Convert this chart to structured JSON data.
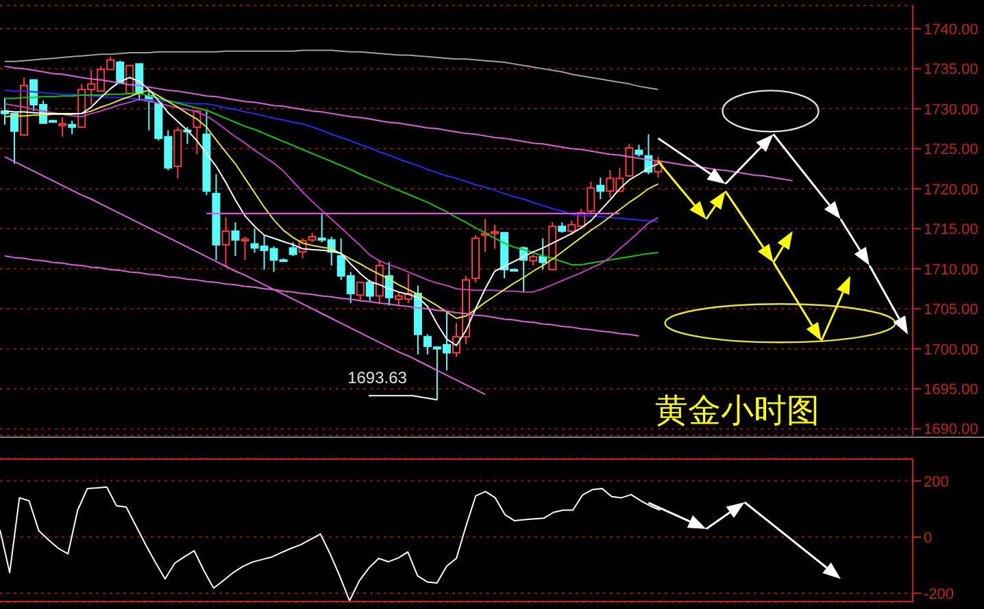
{
  "chart_data": [
    {
      "type": "candlestick",
      "title": "黄金小时图",
      "categories": [
        null,
        null,
        null,
        null,
        null,
        null,
        null,
        null,
        null,
        null,
        null,
        null,
        null,
        null,
        null,
        null,
        null,
        null,
        null,
        null,
        null,
        null,
        null,
        null,
        null,
        null,
        null,
        null,
        null,
        null,
        null,
        null,
        null,
        null,
        null,
        null,
        null,
        null,
        null,
        null,
        null,
        null,
        null,
        null,
        null,
        null,
        null,
        null,
        null,
        null,
        null,
        null,
        null,
        null,
        null,
        null,
        null,
        null,
        null,
        null,
        null,
        null,
        null,
        null,
        null,
        null,
        null,
        null,
        null,
        null,
        null,
        null,
        null,
        null,
        null,
        null,
        null,
        null,
        null,
        null,
        null,
        null,
        null,
        null,
        null,
        null,
        null,
        null,
        null,
        null,
        null,
        null,
        null,
        null,
        null
      ],
      "ohlc": [
        [
          1729.7,
          1731.4,
          1728.0,
          1729.4
        ],
        [
          1729.4,
          1729.4,
          1723.1,
          1727.2
        ],
        [
          1726.7,
          1733.9,
          1726.7,
          1732.9
        ],
        [
          1733.6,
          1733.6,
          1729.7,
          1730.5
        ],
        [
          1730.5,
          1731.0,
          1728.2,
          1728.2
        ],
        [
          1728.5,
          1728.6,
          1728.4,
          1728.5
        ],
        [
          1727.9,
          1728.9,
          1726.5,
          1728.1
        ],
        [
          1728.0,
          1728.5,
          1726.8,
          1727.7
        ],
        [
          1727.7,
          1733.1,
          1727.7,
          1732.4
        ],
        [
          1732.4,
          1734.8,
          1730.5,
          1733.1
        ],
        [
          1732.2,
          1735.3,
          1732.2,
          1734.9
        ],
        [
          1734.9,
          1736.5,
          1734.9,
          1736.1
        ],
        [
          1735.8,
          1736.0,
          1733.2,
          1733.2
        ],
        [
          1731.9,
          1735.4,
          1731.9,
          1735.4
        ],
        [
          1735.6,
          1735.6,
          1731.0,
          1731.9
        ],
        [
          1731.6,
          1732.2,
          1727.3,
          1731.0
        ],
        [
          1730.7,
          1730.7,
          1726.0,
          1726.3
        ],
        [
          1726.5,
          1727.3,
          1722.3,
          1722.6
        ],
        [
          1722.8,
          1727.7,
          1721.3,
          1727.3
        ],
        [
          1727.3,
          1727.7,
          1725.6,
          1727.2
        ],
        [
          1727.7,
          1729.9,
          1724.3,
          1729.7
        ],
        [
          1726.8,
          1729.7,
          1719.2,
          1719.7
        ],
        [
          1719.4,
          1721.8,
          1711.1,
          1713.0
        ],
        [
          1713.0,
          1716.4,
          1710.3,
          1714.7
        ],
        [
          1714.7,
          1715.8,
          1711.6,
          1713.6
        ],
        [
          1713.5,
          1714.0,
          1711.1,
          1713.7
        ],
        [
          1713.1,
          1715.0,
          1712.0,
          1712.6
        ],
        [
          1712.8,
          1714.2,
          1709.9,
          1712.3
        ],
        [
          1712.5,
          1712.8,
          1709.6,
          1711.1
        ],
        [
          1711.1,
          1711.3,
          1710.9,
          1711.1
        ],
        [
          1712.6,
          1713.3,
          1711.6,
          1711.8
        ],
        [
          1712.1,
          1713.8,
          1711.3,
          1713.5
        ],
        [
          1713.6,
          1714.5,
          1713.3,
          1714.0
        ],
        [
          1713.8,
          1716.9,
          1713.3,
          1713.6
        ],
        [
          1713.6,
          1714.0,
          1710.4,
          1712.1
        ],
        [
          1711.6,
          1713.8,
          1708.6,
          1709.1
        ],
        [
          1709.1,
          1709.6,
          1705.7,
          1706.9
        ],
        [
          1706.7,
          1708.3,
          1706.0,
          1708.3
        ],
        [
          1708.3,
          1708.6,
          1706.0,
          1706.6
        ],
        [
          1706.6,
          1711.1,
          1705.7,
          1710.4
        ],
        [
          1709.1,
          1710.8,
          1705.4,
          1706.4
        ],
        [
          1706.2,
          1707.1,
          1705.4,
          1706.6
        ],
        [
          1706.2,
          1709.4,
          1705.7,
          1706.9
        ],
        [
          1706.9,
          1707.9,
          1699.3,
          1701.8
        ],
        [
          1701.5,
          1701.8,
          1699.3,
          1700.3
        ],
        [
          1700.2,
          1700.3,
          1693.63,
          1700.0
        ],
        [
          1700.5,
          1704.5,
          1697.3,
          1699.5
        ],
        [
          1699.5,
          1703.2,
          1699.0,
          1701.5
        ],
        [
          1701.5,
          1709.1,
          1700.6,
          1708.6
        ],
        [
          1708.8,
          1714.2,
          1708.3,
          1713.8
        ],
        [
          1714.2,
          1716.2,
          1712.1,
          1714.4
        ],
        [
          1714.4,
          1715.5,
          1712.5,
          1714.6
        ],
        [
          1714.5,
          1714.5,
          1708.8,
          1709.9
        ],
        [
          1709.9,
          1710.0,
          1709.8,
          1709.9
        ],
        [
          1712.6,
          1712.8,
          1707.1,
          1711.1
        ],
        [
          1711.0,
          1711.8,
          1710.4,
          1711.5
        ],
        [
          1711.5,
          1713.8,
          1709.9,
          1710.8
        ],
        [
          1709.9,
          1715.8,
          1709.9,
          1715.3
        ],
        [
          1715.3,
          1715.8,
          1714.5,
          1714.7
        ],
        [
          1714.7,
          1716.0,
          1714.2,
          1715.5
        ],
        [
          1715.3,
          1717.5,
          1715.3,
          1717.0
        ],
        [
          1717.2,
          1720.9,
          1717.0,
          1720.1
        ],
        [
          1720.4,
          1721.4,
          1718.7,
          1719.7
        ],
        [
          1719.7,
          1722.3,
          1718.9,
          1721.3
        ],
        [
          1719.7,
          1722.6,
          1719.6,
          1721.3
        ],
        [
          1721.6,
          1725.6,
          1721.6,
          1725.1
        ],
        [
          1724.8,
          1725.5,
          1724.0,
          1724.3
        ],
        [
          1724.1,
          1726.8,
          1721.8,
          1722.1
        ],
        [
          1722.1,
          1724.0,
          1721.4,
          1723.3
        ],
        null,
        null,
        null,
        null,
        null,
        null,
        null,
        null,
        null,
        null,
        null,
        null,
        null,
        null,
        null,
        null,
        null,
        null,
        null,
        null,
        null,
        null,
        null,
        null,
        null,
        null
      ],
      "colors": [
        "#54fcfc",
        "#54fcfc",
        "#ff3c3c",
        "#54fcfc",
        "#54fcfc",
        "#54fcfc",
        "#ff3c3c",
        "#54fcfc",
        "#ff3c3c",
        "#ff3c3c",
        "#ff3c3c",
        "#ff3c3c",
        "#54fcfc",
        "#ff3c3c",
        "#54fcfc",
        "#54fcfc",
        "#54fcfc",
        "#54fcfc",
        "#ff3c3c",
        "#54fcfc",
        "#ff3c3c",
        "#54fcfc",
        "#54fcfc",
        "#ff3c3c",
        "#54fcfc",
        "#ff3c3c",
        "#54fcfc",
        "#54fcfc",
        "#54fcfc",
        "#54fcfc",
        "#54fcfc",
        "#ff3c3c",
        "#ff3c3c",
        "#54fcfc",
        "#54fcfc",
        "#54fcfc",
        "#54fcfc",
        "#ff3c3c",
        "#54fcfc",
        "#ff3c3c",
        "#54fcfc",
        "#ff3c3c",
        "#ff3c3c",
        "#54fcfc",
        "#54fcfc",
        "#54fcfc",
        "#54fcfc",
        "#ff3c3c",
        "#ff3c3c",
        "#ff3c3c",
        "#ff3c3c",
        "#ff3c3c",
        "#54fcfc",
        "#54fcfc",
        "#54fcfc",
        "#ff3c3c",
        "#54fcfc",
        "#ff3c3c",
        "#54fcfc",
        "#ff3c3c",
        "#ff3c3c",
        "#ff3c3c",
        "#54fcfc",
        "#ff3c3c",
        "#ff3c3c",
        "#ff3c3c",
        "#54fcfc",
        "#54fcfc",
        "#ff3c3c",
        null,
        null,
        null,
        null,
        null,
        null,
        null,
        null,
        null,
        null,
        null,
        null,
        null,
        null,
        null,
        null,
        null,
        null,
        null,
        null,
        null,
        null,
        null,
        null,
        null,
        null
      ],
      "series": [
        {
          "type": "line",
          "color": "#a0a0a0",
          "values": [
            1735.9,
            1735.9,
            1736.0,
            1736.1,
            1736.2,
            1736.3,
            1736.4,
            1736.5,
            1736.6,
            1736.7,
            1736.8,
            1736.8,
            1736.9,
            1737.0,
            1737.0,
            1737.0,
            1737.1,
            1737.1,
            1737.1,
            1737.1,
            1737.1,
            1737.1,
            1737.1,
            1737.2,
            1737.2,
            1737.2,
            1737.2,
            1737.2,
            1737.2,
            1737.2,
            1737.2,
            1737.3,
            1737.3,
            1737.3,
            1737.3,
            1737.2,
            1737.1,
            1737.1,
            1737.0,
            1736.9,
            1736.8,
            1736.7,
            1736.7,
            1736.6,
            1736.5,
            1736.4,
            1736.3,
            1736.2,
            1736.2,
            1736.1,
            1736.0,
            1735.9,
            1735.8,
            1735.6,
            1735.4,
            1735.2,
            1735.0,
            1734.8,
            1734.6,
            1734.3,
            1734.1,
            1733.9,
            1733.7,
            1733.5,
            1733.3,
            1733.1,
            1732.8,
            1732.6,
            1732.4,
            null,
            null,
            null,
            null,
            null,
            null,
            null,
            null,
            null,
            null,
            null,
            null,
            null,
            null,
            null,
            null,
            null,
            null,
            null,
            null,
            null,
            null,
            null,
            null,
            null,
            null
          ]
        },
        {
          "type": "line",
          "color": "#2828ff",
          "values": [
            1732.3,
            1732.2,
            1732.2,
            1732.1,
            1732.0,
            1731.9,
            1731.8,
            1731.8,
            1731.7,
            1731.6,
            1731.5,
            1731.4,
            1731.4,
            1731.3,
            1731.2,
            1731.1,
            1731.0,
            1730.9,
            1730.8,
            1730.7,
            1730.6,
            1730.6,
            1730.4,
            1730.1,
            1729.9,
            1729.6,
            1729.4,
            1729.1,
            1728.8,
            1728.6,
            1728.3,
            1728.1,
            1727.7,
            1727.3,
            1726.8,
            1726.4,
            1726.0,
            1725.5,
            1725.1,
            1724.6,
            1724.2,
            1723.7,
            1723.3,
            1722.9,
            1722.4,
            1722.0,
            1721.6,
            1721.3,
            1720.9,
            1720.5,
            1720.2,
            1719.8,
            1719.4,
            1719.0,
            1718.7,
            1718.3,
            1717.9,
            1717.5,
            1717.2,
            1716.8,
            1716.6,
            1716.6,
            1716.5,
            1716.4,
            1716.3,
            1716.2,
            1716.1,
            1716.0,
            1715.9,
            null,
            null,
            null,
            null,
            null,
            null,
            null,
            null,
            null,
            null,
            null,
            null,
            null,
            null,
            null,
            null,
            null,
            null,
            null,
            null,
            null,
            null,
            null,
            null,
            null,
            null
          ]
        },
        {
          "type": "line",
          "color": "#10c810",
          "values": [
            1731.3,
            1731.3,
            1731.4,
            1731.4,
            1731.5,
            1731.5,
            1731.6,
            1731.6,
            1731.7,
            1731.7,
            1731.7,
            1731.8,
            1731.8,
            1731.9,
            1731.9,
            1731.6,
            1731.3,
            1731.0,
            1730.7,
            1730.4,
            1730.1,
            1729.8,
            1729.3,
            1728.8,
            1728.3,
            1727.8,
            1727.4,
            1726.9,
            1726.4,
            1725.9,
            1725.4,
            1724.9,
            1724.4,
            1723.9,
            1723.4,
            1722.9,
            1722.4,
            1721.8,
            1721.3,
            1720.8,
            1720.3,
            1719.8,
            1719.3,
            1718.8,
            1718.3,
            1717.7,
            1717.1,
            1716.4,
            1715.8,
            1715.1,
            1714.5,
            1713.8,
            1713.2,
            1712.7,
            1712.4,
            1712.0,
            1711.6,
            1711.3,
            1710.9,
            1710.5,
            1710.5,
            1710.7,
            1710.9,
            1711.1,
            1711.3,
            1711.5,
            1711.7,
            1711.9,
            1712.0,
            null,
            null,
            null,
            null,
            null,
            null,
            null,
            null,
            null,
            null,
            null,
            null,
            null,
            null,
            null,
            null,
            null,
            null,
            null,
            null,
            null,
            null,
            null,
            null,
            null,
            null
          ]
        },
        {
          "type": "line",
          "color": "#c040c0",
          "values": [
            1730.6,
            1730.4,
            1730.2,
            1729.9,
            1729.7,
            1729.5,
            1729.3,
            1729.1,
            1729.0,
            1729.4,
            1729.7,
            1730.1,
            1730.5,
            1730.8,
            1731.2,
            1730.9,
            1730.7,
            1730.4,
            1730.1,
            1729.9,
            1729.6,
            1729.1,
            1728.3,
            1727.4,
            1726.5,
            1725.7,
            1724.8,
            1724.0,
            1723.2,
            1722.2,
            1720.9,
            1719.6,
            1718.4,
            1717.3,
            1716.2,
            1715.1,
            1714.0,
            1712.9,
            1711.7,
            1711.0,
            1710.5,
            1710.1,
            1709.6,
            1709.1,
            1708.6,
            1708.2,
            1707.9,
            1707.5,
            1707.4,
            1707.3,
            1707.3,
            1707.3,
            1707.2,
            1707.2,
            1707.1,
            1707.1,
            1707.5,
            1708.0,
            1708.5,
            1709.0,
            1709.5,
            1710.1,
            1710.6,
            1711.4,
            1712.5,
            1713.5,
            1714.6,
            1715.7,
            1716.4,
            null,
            null,
            null,
            null,
            null,
            null,
            null,
            null,
            null,
            null,
            null,
            null,
            null,
            null,
            null,
            null,
            null,
            null,
            null,
            null,
            null,
            null,
            null,
            null,
            null,
            null
          ]
        },
        {
          "type": "line",
          "color": "#e6e632",
          "values": [
            1729.0,
            1729.1,
            1729.1,
            1729.2,
            1729.2,
            1729.3,
            1729.3,
            1729.3,
            1729.4,
            1729.7,
            1730.2,
            1730.6,
            1731.1,
            1731.5,
            1732.0,
            1732.3,
            1731.6,
            1730.9,
            1730.2,
            1729.4,
            1728.7,
            1727.7,
            1726.1,
            1724.6,
            1723.1,
            1721.3,
            1719.5,
            1717.7,
            1716.1,
            1714.8,
            1713.9,
            1713.2,
            1712.9,
            1712.7,
            1712.5,
            1711.9,
            1711.2,
            1710.6,
            1709.9,
            1709.3,
            1708.7,
            1708.0,
            1707.4,
            1706.8,
            1706.1,
            1705.4,
            1704.6,
            1703.8,
            1704.1,
            1704.9,
            1705.8,
            1706.6,
            1707.4,
            1708.2,
            1708.9,
            1709.7,
            1710.4,
            1711.2,
            1712.1,
            1713.0,
            1713.9,
            1714.8,
            1715.6,
            1716.5,
            1717.4,
            1718.3,
            1719.1,
            1720.0,
            1720.6,
            null,
            null,
            null,
            null,
            null,
            null,
            null,
            null,
            null,
            null,
            null,
            null,
            null,
            null,
            null,
            null,
            null,
            null,
            null,
            null,
            null,
            null,
            null,
            null,
            null,
            null
          ]
        },
        {
          "type": "line",
          "color": "#ffffff",
          "values": [
            1729.7,
            1729.6,
            1729.6,
            1729.5,
            1729.4,
            1729.4,
            1729.4,
            1729.4,
            1729.4,
            1730.2,
            1731.4,
            1732.5,
            1733.4,
            1733.9,
            1733.4,
            1732.4,
            1731.0,
            1729.5,
            1728.4,
            1727.3,
            1726.0,
            1724.4,
            1722.8,
            1720.8,
            1718.6,
            1716.6,
            1715.3,
            1714.2,
            1713.8,
            1713.4,
            1713.0,
            1712.5,
            1712.4,
            1712.3,
            1712.2,
            1711.9,
            1710.6,
            1709.4,
            1708.4,
            1708.0,
            1707.5,
            1707.1,
            1706.8,
            1706.4,
            1705.3,
            1703.1,
            1701.2,
            1700.4,
            1702.3,
            1705.0,
            1707.5,
            1709.7,
            1710.3,
            1710.9,
            1711.5,
            1712.1,
            1712.6,
            1713.2,
            1713.8,
            1714.4,
            1715.1,
            1716.0,
            1717.3,
            1718.6,
            1720.0,
            1721.1,
            1721.8,
            1722.6,
            1723.1,
            null,
            null,
            null,
            null,
            null,
            null,
            null,
            null,
            null,
            null,
            null,
            null,
            null,
            null,
            null,
            null,
            null,
            null,
            null,
            null,
            null,
            null,
            null,
            null,
            null,
            null
          ]
        },
        {
          "type": "line",
          "color": "#e060e0",
          "values": [
            1735.3,
            1735.1,
            1735.0,
            1734.8,
            1734.6,
            1734.4,
            1734.3,
            1734.1,
            1733.9,
            1733.7,
            1733.6,
            1733.4,
            1733.2,
            1733.0,
            1732.9,
            1732.7,
            1732.5,
            1732.3,
            1732.2,
            1732.0,
            1731.8,
            1731.6,
            1731.5,
            1731.3,
            1731.1,
            1730.9,
            1730.8,
            1730.6,
            1730.4,
            1730.3,
            1730.1,
            1729.9,
            1729.7,
            1729.6,
            1729.4,
            1729.2,
            1729.0,
            1728.9,
            1728.7,
            1728.5,
            1728.3,
            1728.2,
            1728.0,
            1727.8,
            1727.6,
            1727.5,
            1727.3,
            1727.1,
            1726.9,
            1726.8,
            1726.6,
            1726.4,
            1726.3,
            1726.1,
            1725.9,
            1725.7,
            1725.6,
            1725.4,
            1725.2,
            1725.0,
            1724.9,
            1724.7,
            1724.5,
            1724.3,
            1724.2,
            1724.0,
            1723.8,
            1723.6,
            1723.5,
            1723.3,
            1723.1,
            1722.9,
            1722.8,
            1722.6,
            1722.4,
            1722.3,
            1722.1,
            1721.9,
            1721.7,
            1721.6,
            1721.4,
            1721.2,
            1721.0,
            null,
            null,
            null,
            null,
            null,
            null,
            null,
            null,
            null,
            null,
            null,
            null
          ]
        },
        {
          "type": "line",
          "color": "#e060e0",
          "values": [
            1724.0,
            1723.4,
            1722.8,
            1722.2,
            1721.6,
            1721.0,
            1720.4,
            1719.8,
            1719.2,
            1718.7,
            1718.1,
            1717.5,
            1716.9,
            1716.3,
            1715.7,
            1715.1,
            1714.5,
            1713.9,
            1713.3,
            1712.7,
            1712.1,
            1711.5,
            1710.9,
            1710.3,
            1709.7,
            1709.2,
            1708.6,
            1708.0,
            1707.4,
            1706.8,
            1706.2,
            1705.6,
            1705.0,
            1704.4,
            1703.8,
            1703.2,
            1702.6,
            1702.0,
            1701.4,
            1700.8,
            1700.2,
            1699.6,
            1699.1,
            1698.5,
            1697.9,
            1697.3,
            1696.7,
            1696.1,
            1695.5,
            1694.9,
            1694.3,
            null,
            null,
            null,
            null,
            null,
            null,
            null,
            null,
            null,
            null,
            null,
            null,
            null,
            null,
            null,
            null,
            null,
            null,
            null,
            null,
            null,
            null,
            null,
            null,
            null,
            null,
            null,
            null,
            null,
            null,
            null,
            null,
            null,
            null,
            null,
            null,
            null,
            null,
            null,
            null,
            null,
            null,
            null,
            null
          ]
        },
        {
          "type": "line",
          "color": "#e060e0",
          "values": [
            1711.6,
            1711.4,
            1711.3,
            1711.1,
            1711.0,
            1710.8,
            1710.7,
            1710.5,
            1710.4,
            1710.2,
            1710.1,
            1709.9,
            1709.8,
            1709.6,
            1709.5,
            1709.3,
            1709.2,
            1709.0,
            1708.9,
            1708.7,
            1708.6,
            1708.4,
            1708.3,
            1708.1,
            1708.0,
            1707.8,
            1707.7,
            1707.5,
            1707.4,
            1707.2,
            1707.1,
            1706.9,
            1706.8,
            1706.6,
            1706.5,
            1706.3,
            1706.2,
            1706.0,
            1705.9,
            1705.7,
            1705.6,
            1705.4,
            1705.3,
            1705.1,
            1705.0,
            1704.8,
            1704.7,
            1704.5,
            1704.4,
            1704.2,
            1704.1,
            1703.9,
            1703.7,
            1703.6,
            1703.4,
            1703.3,
            1703.1,
            1703.0,
            1702.8,
            1702.7,
            1702.5,
            1702.4,
            1702.2,
            1702.1,
            1701.9,
            1701.8,
            1701.6,
            null,
            null,
            null,
            null,
            null,
            null,
            null,
            null,
            null,
            null,
            null,
            null,
            null,
            null,
            null,
            null,
            null,
            null,
            null,
            null,
            null,
            null,
            null,
            null,
            null,
            null,
            null,
            null
          ]
        },
        {
          "type": "line",
          "color": "#ff40ff",
          "values": [
            null,
            null,
            null,
            null,
            null,
            null,
            null,
            null,
            null,
            null,
            null,
            null,
            null,
            null,
            null,
            null,
            null,
            null,
            null,
            null,
            null,
            1716.9,
            1716.9,
            1716.9,
            1716.9,
            1716.9,
            1716.9,
            1716.9,
            1716.9,
            1716.9,
            1716.9,
            1716.9,
            1716.9,
            1716.9,
            1716.9,
            1716.9,
            1716.9,
            1716.9,
            1716.9,
            1716.9,
            1716.9,
            1716.9,
            1716.9,
            1716.9,
            1716.9,
            1716.9,
            1716.9,
            1716.9,
            1716.9,
            1716.9,
            1716.9,
            1716.9,
            1716.9,
            1716.9,
            1716.9,
            1716.9,
            1716.9,
            1716.9,
            1716.9,
            1716.9,
            1716.9,
            1716.9,
            1716.9,
            1716.9,
            1716.9,
            null,
            null,
            null,
            null,
            null,
            null,
            null,
            null,
            null,
            null,
            null,
            null,
            null,
            null,
            null,
            null,
            null,
            null,
            null,
            null,
            null,
            null,
            null,
            null,
            null,
            null,
            null,
            null,
            null,
            null
          ]
        }
      ],
      "ylim": [
        1689.2,
        1742.9
      ],
      "yticks": [
        {
          "value": 1690,
          "label": "1690.00"
        },
        {
          "value": 1695,
          "label": "1695.00"
        },
        {
          "value": 1700,
          "label": "1700.00"
        },
        {
          "value": 1705,
          "label": "1705.00"
        },
        {
          "value": 1710,
          "label": "1710.00"
        },
        {
          "value": 1715,
          "label": "1715.00"
        },
        {
          "value": 1720,
          "label": "1720.00"
        },
        {
          "value": 1725,
          "label": "1725.00"
        },
        {
          "value": 1730,
          "label": "1730.00"
        },
        {
          "value": 1735,
          "label": "1735.00"
        },
        {
          "value": 1740,
          "label": "1740.00"
        }
      ],
      "grid": "y",
      "tick_labels": "y",
      "annotations": [
        "1693.63"
      ]
    },
    {
      "type": "line",
      "categories": [
        null,
        null,
        null,
        null,
        null,
        null,
        null,
        null,
        null,
        null,
        null,
        null,
        null,
        null,
        null,
        null,
        null,
        null,
        null,
        null,
        null,
        null,
        null,
        null,
        null,
        null,
        null,
        null,
        null,
        null,
        null,
        null,
        null,
        null,
        null,
        null,
        null,
        null,
        null,
        null,
        null,
        null,
        null,
        null,
        null,
        null,
        null,
        null,
        null,
        null,
        null,
        null,
        null,
        null,
        null,
        null,
        null,
        null,
        null,
        null,
        null,
        null,
        null,
        null,
        null,
        null,
        null,
        null,
        null,
        null,
        null,
        null,
        null,
        null,
        null,
        null,
        null,
        null,
        null,
        null,
        null,
        null,
        null,
        null,
        null,
        null,
        null,
        null,
        null,
        null,
        null,
        null,
        null,
        null,
        null
      ],
      "series": [
        {
          "color": "#ffffff",
          "values": [
            25,
            -127,
            140,
            129,
            22,
            -10,
            -40,
            -60,
            96,
            173,
            175,
            178,
            111,
            107,
            40,
            -27,
            -90,
            -149,
            -93,
            -70,
            -49,
            -120,
            -182,
            -155,
            -127,
            -105,
            -89,
            -80,
            -71,
            -55,
            -40,
            -27,
            -8,
            11,
            -60,
            -140,
            -227,
            -156,
            -110,
            -76,
            -88,
            -75,
            -53,
            -138,
            -160,
            -164,
            -104,
            -76,
            40,
            147,
            162,
            140,
            80,
            58,
            62,
            65,
            67,
            88,
            96,
            96,
            150,
            169,
            173,
            144,
            140,
            151,
            129,
            110,
            96,
            null,
            null,
            null,
            null,
            null,
            null,
            null,
            null,
            null,
            null,
            null,
            null,
            null,
            null,
            null,
            null,
            null,
            null,
            null,
            null,
            null,
            null,
            null,
            null,
            null,
            null
          ]
        }
      ],
      "ylim": [
        -232,
        280
      ],
      "yticks": [
        -200,
        0,
        200
      ],
      "grid": "y",
      "tick_labels": "y"
    }
  ]
}
